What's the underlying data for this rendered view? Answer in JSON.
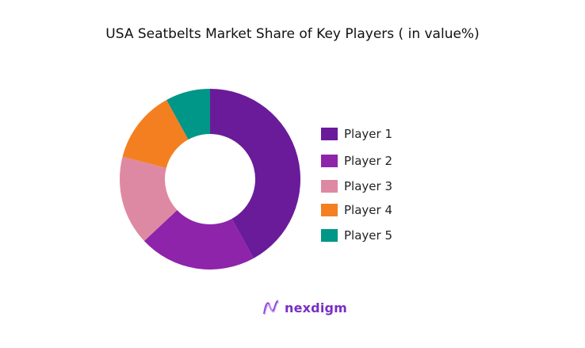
{
  "chart_data": {
    "type": "pie",
    "variant": "donut",
    "title": "USA Seatbelts Market Share of Key Players ( in value%)",
    "categories": [
      "Player 1",
      "Player 2",
      "Player 3",
      "Player 4",
      "Player 5"
    ],
    "values": [
      42,
      21,
      16,
      13,
      8
    ],
    "colors": [
      "#6a1b9a",
      "#8e24aa",
      "#de89a3",
      "#f47f20",
      "#009688"
    ],
    "legend_position": "right"
  },
  "logo": {
    "text": "nexdigm",
    "color": "#7a2fc4"
  }
}
